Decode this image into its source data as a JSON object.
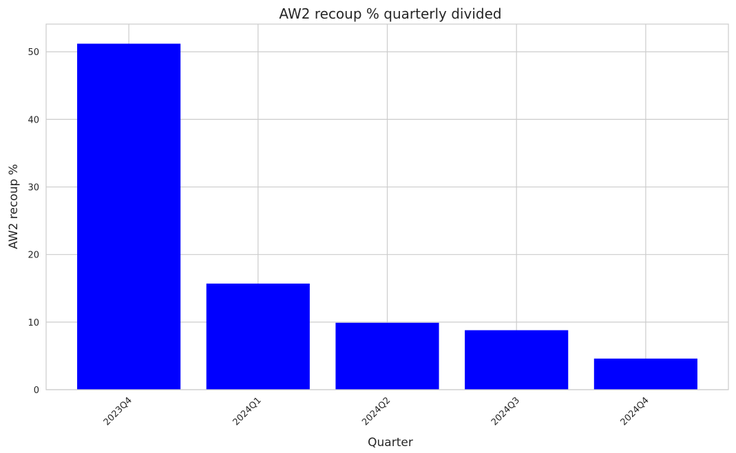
{
  "chart_data": {
    "type": "bar",
    "title": "AW2 recoup % quarterly divided",
    "x_label": "Quarter",
    "y_label": "AW2 recoup %",
    "categories": [
      "2023Q4",
      "2024Q1",
      "2024Q2",
      "2024Q3",
      "2024Q4"
    ],
    "values": [
      51.2,
      15.7,
      9.9,
      8.8,
      4.6
    ],
    "color": "#0000ff",
    "ylim": [
      0,
      54.1
    ],
    "yticks": [
      0,
      10,
      20,
      30,
      40,
      50
    ],
    "grid": true
  }
}
